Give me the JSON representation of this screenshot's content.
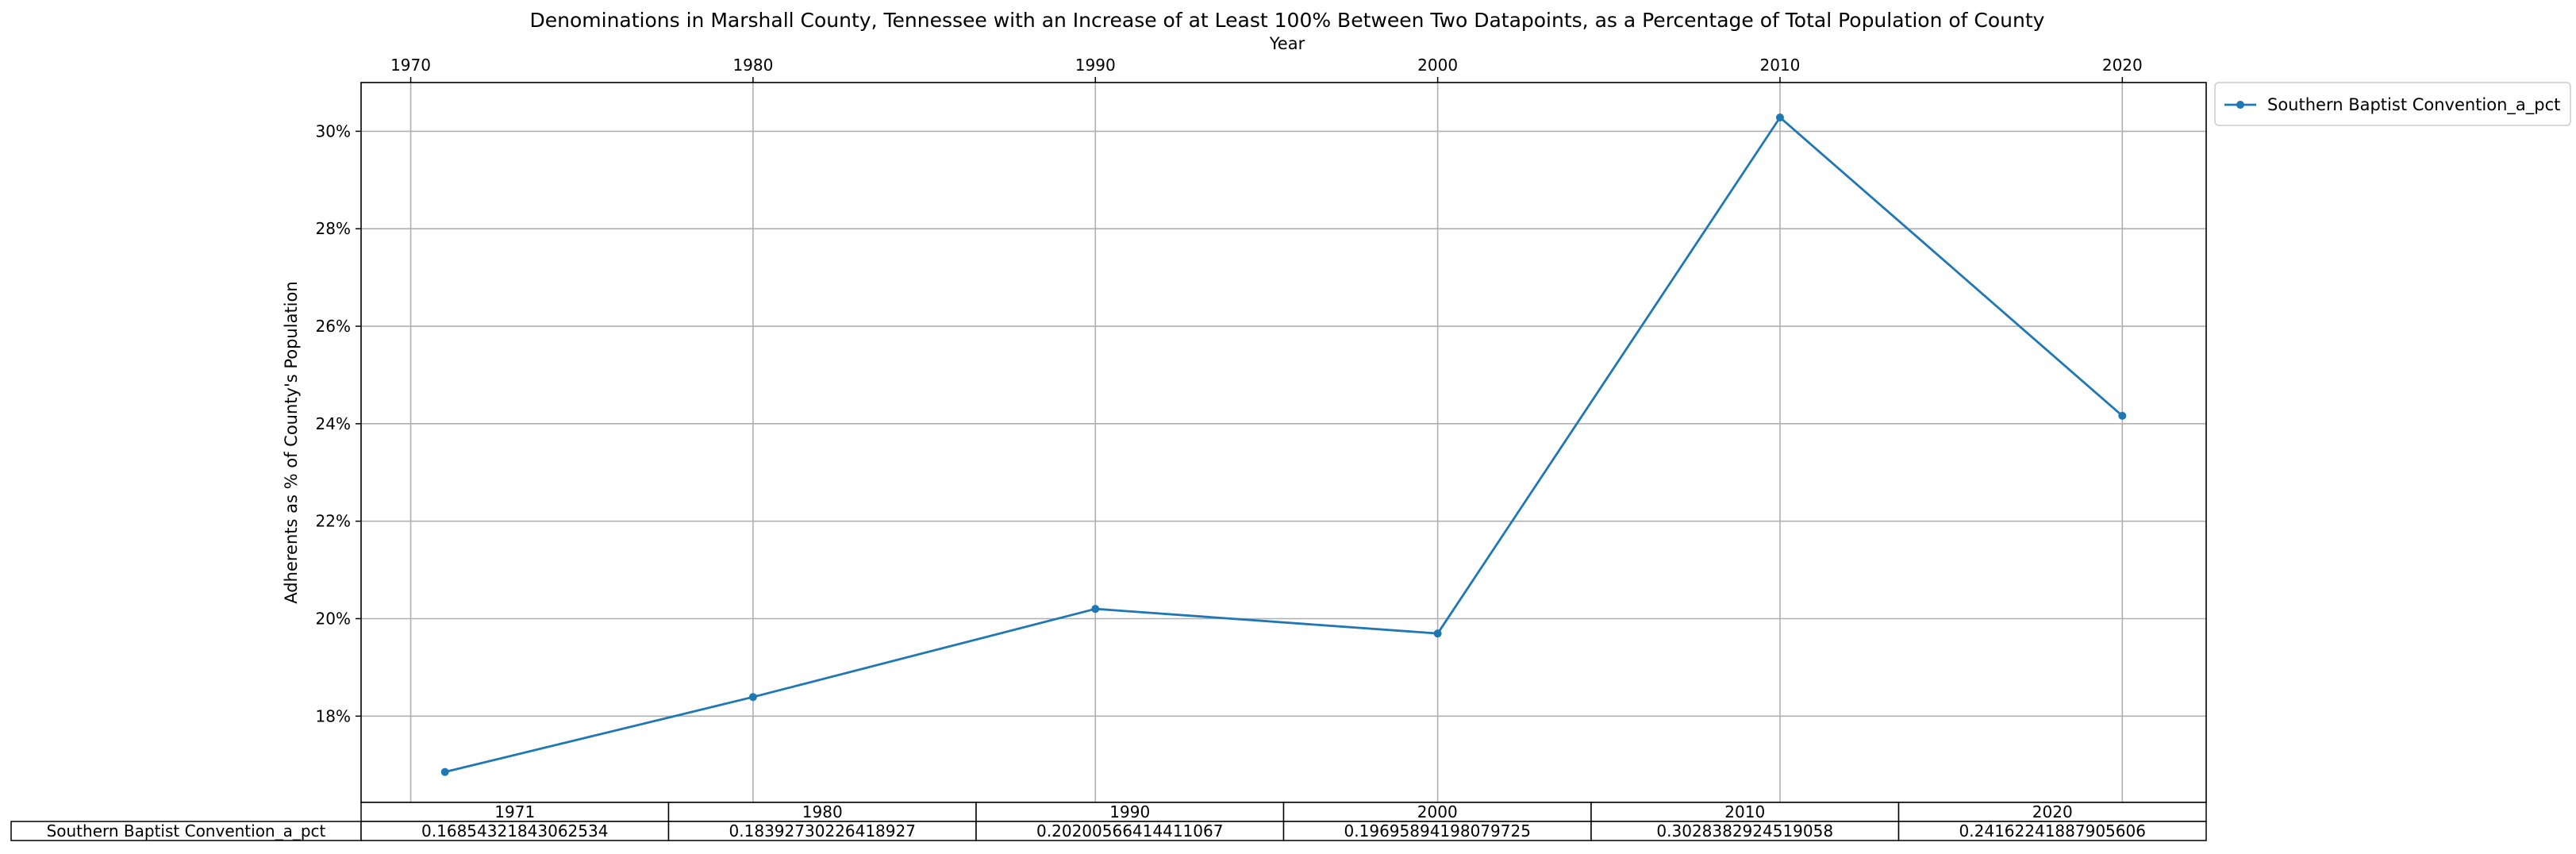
{
  "chart_data": {
    "type": "line",
    "title": "Denominations in Marshall County, Tennessee with an Increase of at Least 100% Between Two Datapoints, as a Percentage of Total Population of County",
    "xlabel": "Year",
    "ylabel": "Adherents as % of County's Population",
    "x_ticks": [
      "1970",
      "1980",
      "1990",
      "2000",
      "2010",
      "2020"
    ],
    "y_ticks": [
      "18%",
      "20%",
      "22%",
      "24%",
      "26%",
      "28%",
      "30%"
    ],
    "xlim": [
      1968.55,
      2022.45
    ],
    "ylim": [
      0.1623,
      0.31
    ],
    "grid": true,
    "legend_position": "outside upper right",
    "x": [
      1971,
      1980,
      1990,
      2000,
      2010,
      2020
    ],
    "series": [
      {
        "name": "Southern Baptist Convention_a_pct",
        "color": "#1f77b4",
        "values": [
          0.16854321843062534,
          0.18392730226418927,
          0.20200566414411067,
          0.19695894198079725,
          0.3028382924519058,
          0.24162241887905606
        ]
      }
    ],
    "table": {
      "columns": [
        "1971",
        "1980",
        "1990",
        "2000",
        "2010",
        "2020"
      ],
      "rows": [
        {
          "label": "Southern Baptist Convention_a_pct",
          "cells": [
            "0.16854321843062534",
            "0.18392730226418927",
            "0.20200566414411067",
            "0.19695894198079725",
            "0.3028382924519058",
            "0.24162241887905606"
          ]
        }
      ]
    }
  }
}
